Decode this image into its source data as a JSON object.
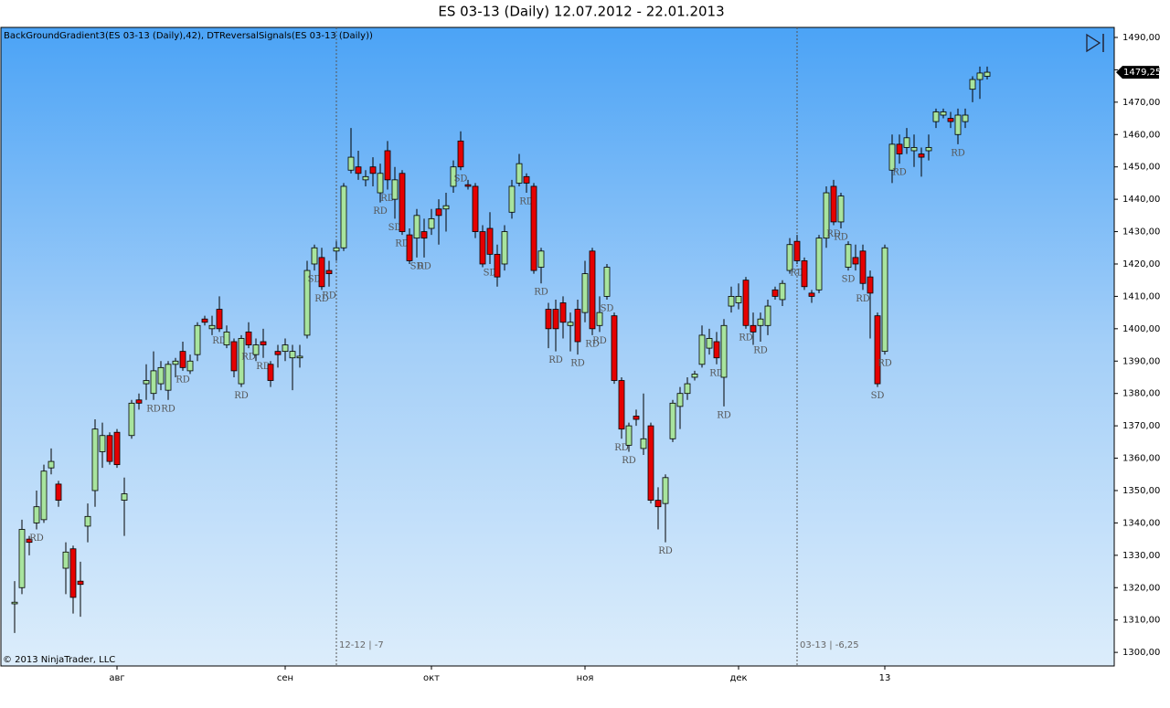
{
  "chart_data": {
    "type": "candlestick",
    "title": "ES 03-13 (Daily)  12.07.2012 - 22.01.2013",
    "indicator_label": "BackGroundGradient3(ES 03-13 (Daily),42), DTReversalSignals(ES 03-13 (Daily))",
    "copyright": "© 2013 NinjaTrader, LLC",
    "up_color": "#a8e49e",
    "down_color": "#e50000",
    "categories": [
      null,
      null,
      null,
      null,
      null,
      null,
      null,
      null,
      null,
      null,
      null,
      null,
      null,
      null,
      "авг",
      null,
      null,
      null,
      null,
      null,
      null,
      null,
      null,
      null,
      null,
      null,
      null,
      null,
      null,
      null,
      null,
      null,
      null,
      null,
      null,
      null,
      null,
      "сен",
      null,
      null,
      null,
      null,
      null,
      null,
      null,
      null,
      null,
      null,
      null,
      null,
      null,
      null,
      null,
      null,
      null,
      null,
      null,
      "окт",
      null,
      null,
      null,
      null,
      null,
      null,
      null,
      null,
      null,
      null,
      null,
      null,
      null,
      null,
      null,
      null,
      null,
      null,
      null,
      null,
      "ноя",
      null,
      null,
      null,
      null,
      null,
      null,
      null,
      null,
      null,
      null,
      null,
      null,
      null,
      null,
      null,
      null,
      null,
      null,
      null,
      null,
      "дек",
      null,
      null,
      null,
      null,
      null,
      null,
      null,
      null,
      null,
      null,
      null,
      null,
      null,
      null,
      null,
      null,
      null,
      null,
      null,
      "13",
      null,
      null,
      null,
      null,
      null,
      null,
      null,
      null,
      null,
      null,
      null,
      null,
      null,
      null
    ],
    "open": [
      1315,
      1320,
      1335,
      1340,
      1341,
      1357,
      1352,
      1326,
      1332,
      1322,
      1339,
      1350,
      1362,
      1367,
      1368,
      1347,
      1367,
      1378,
      1383,
      1380,
      1383,
      1381,
      1389,
      1393,
      1387,
      1392,
      1403,
      1400,
      1406,
      1395,
      1396,
      1383,
      1399,
      1392,
      1396,
      1389,
      1393,
      1393,
      1391,
      1391,
      1398,
      1420,
      1422,
      1418,
      1424,
      1425,
      1449,
      1450,
      1446,
      1450,
      1442,
      1455,
      1440,
      1448,
      1429,
      1428,
      1430,
      1431,
      1437,
      1437,
      1444,
      1458,
      1444.5,
      1444,
      1430,
      1431,
      1423,
      1420,
      1436,
      1445,
      1447,
      1444,
      1419,
      1406,
      1406,
      1408,
      1401,
      1406,
      1405,
      1424,
      1401,
      1410,
      1404,
      1384,
      1364,
      1373,
      1363,
      1370,
      1347,
      1346,
      1366,
      1376,
      1380,
      1385,
      1389,
      1394,
      1396,
      1385,
      1407,
      1408,
      1415,
      1401,
      1401,
      1401,
      1412,
      1409,
      1418,
      1427,
      1421,
      1411,
      1412,
      1428,
      1444,
      1433,
      1419,
      1422,
      1424,
      1416,
      1404,
      1393,
      1449,
      1457,
      1456,
      1455,
      1454,
      1455,
      1464,
      1466,
      1465,
      1460,
      1464,
      1474,
      1477,
      1478
    ],
    "high": [
      1322,
      1341,
      1336,
      1350,
      1358,
      1363,
      1353,
      1334,
      1333,
      1328,
      1346,
      1372,
      1371,
      1368,
      1369,
      1354,
      1378,
      1380,
      1389,
      1393,
      1390,
      1390,
      1391,
      1396,
      1392,
      1402,
      1404,
      1404,
      1410,
      1401,
      1397,
      1398,
      1402,
      1397,
      1400,
      1390,
      1395,
      1397,
      1395,
      1395,
      1421,
      1426,
      1425,
      1421,
      1427,
      1445,
      1462,
      1455,
      1449,
      1453,
      1451,
      1458,
      1450,
      1449,
      1431,
      1437,
      1434,
      1437,
      1440,
      1442,
      1452,
      1461,
      1446,
      1445,
      1432,
      1436,
      1426,
      1432,
      1446,
      1454,
      1448,
      1445,
      1425,
      1408,
      1409,
      1410,
      1405,
      1409,
      1421,
      1425,
      1410,
      1420,
      1405,
      1385,
      1371,
      1375,
      1380,
      1371,
      1351,
      1355,
      1378,
      1382,
      1385,
      1387,
      1401,
      1400,
      1399,
      1403,
      1413,
      1414,
      1416,
      1405,
      1405,
      1409,
      1413,
      1415,
      1428,
      1429,
      1422,
      1412,
      1429,
      1444,
      1446,
      1442,
      1427,
      1426,
      1426,
      1418,
      1405,
      1426,
      1460,
      1460,
      1462,
      1460,
      1456,
      1460,
      1468,
      1468,
      1467,
      1468,
      1468,
      1478,
      1481,
      1481
    ],
    "low": [
      1306,
      1318,
      1330,
      1338,
      1340,
      1355,
      1345,
      1318,
      1312,
      1311,
      1334,
      1345,
      1357,
      1358,
      1357,
      1336,
      1366,
      1375,
      1378,
      1378,
      1381,
      1378,
      1385,
      1387,
      1386,
      1390,
      1401,
      1398,
      1399,
      1394,
      1385,
      1382,
      1394,
      1390,
      1391,
      1382,
      1388,
      1390,
      1381,
      1388,
      1397,
      1418,
      1412,
      1413,
      1421,
      1424,
      1448,
      1446,
      1444,
      1444,
      1439,
      1443,
      1434,
      1429,
      1420,
      1422,
      1422,
      1429,
      1426,
      1430,
      1442,
      1449,
      1443,
      1428,
      1419,
      1420,
      1413,
      1418,
      1434,
      1444,
      1442,
      1417,
      1414,
      1394,
      1393,
      1397,
      1393,
      1392,
      1402,
      1398,
      1399,
      1409,
      1383,
      1366,
      1362,
      1370,
      1361,
      1346,
      1338,
      1334,
      1365,
      1369,
      1378,
      1384,
      1388,
      1392,
      1389,
      1376,
      1405,
      1406,
      1400,
      1395,
      1396,
      1398,
      1409,
      1407,
      1417,
      1420,
      1412,
      1408,
      1411,
      1425,
      1432,
      1431,
      1418,
      1418,
      1412,
      1397,
      1382,
      1392,
      1445,
      1451,
      1454,
      1450,
      1447,
      1452,
      1462,
      1465,
      1462,
      1457,
      1462,
      1470,
      1471,
      1477
    ],
    "close": [
      1315.5,
      1338,
      1334,
      1345,
      1356,
      1359,
      1347,
      1331,
      1317,
      1321,
      1342,
      1369,
      1367,
      1359,
      1358,
      1349,
      1377,
      1377,
      1384,
      1387,
      1388,
      1389,
      1390,
      1388,
      1390,
      1401,
      1402,
      1401,
      1400,
      1399,
      1387,
      1397,
      1395,
      1395,
      1395,
      1384,
      1392,
      1395,
      1393,
      1391.5,
      1418,
      1425,
      1413,
      1417,
      1425,
      1444,
      1453,
      1448,
      1447,
      1448,
      1448,
      1446,
      1446,
      1430,
      1421,
      1435,
      1428,
      1434,
      1435,
      1438,
      1450,
      1450,
      1444,
      1430,
      1420,
      1423,
      1416,
      1430,
      1444,
      1451,
      1445,
      1418,
      1424,
      1400,
      1400,
      1402,
      1402,
      1396,
      1417,
      1400,
      1405,
      1419,
      1384,
      1369,
      1370,
      1372,
      1366,
      1347,
      1345,
      1354,
      1377,
      1380,
      1383,
      1386,
      1398,
      1397,
      1391,
      1401,
      1410,
      1410,
      1401,
      1399,
      1403,
      1407,
      1410,
      1414,
      1426,
      1421,
      1413,
      1410,
      1428,
      1442,
      1433,
      1441,
      1426,
      1420,
      1414,
      1411,
      1383,
      1425,
      1457,
      1454,
      1459,
      1456,
      1453,
      1456,
      1467,
      1467,
      1464,
      1466,
      1466,
      1477,
      1479,
      1479.25
    ],
    "signals": [
      null,
      null,
      null,
      "RD",
      null,
      null,
      null,
      null,
      null,
      null,
      null,
      null,
      null,
      null,
      null,
      null,
      null,
      null,
      null,
      "RD",
      null,
      "RD",
      null,
      "RD",
      null,
      null,
      null,
      null,
      "RD",
      null,
      null,
      "RD",
      "RD",
      null,
      "RD",
      null,
      null,
      null,
      null,
      null,
      null,
      "SD",
      "RD",
      "RD",
      null,
      null,
      null,
      null,
      null,
      null,
      "RD",
      "RD",
      "SD",
      "RD",
      null,
      "SD",
      "RD",
      null,
      null,
      null,
      null,
      "SD",
      null,
      null,
      null,
      "SD",
      null,
      null,
      null,
      null,
      "RD",
      null,
      "RD",
      null,
      "RD",
      null,
      null,
      "RD",
      null,
      "RD",
      "RD",
      "SD",
      null,
      "RD",
      "RD",
      null,
      null,
      null,
      null,
      "RD",
      null,
      null,
      null,
      null,
      null,
      null,
      "RD",
      "RD",
      null,
      null,
      "RD",
      null,
      "RD",
      null,
      null,
      null,
      null,
      "RD",
      null,
      null,
      null,
      null,
      "RD",
      "RD",
      "SD",
      null,
      "RD",
      null,
      "SD",
      "RD",
      null,
      "RD",
      null,
      null,
      null,
      null,
      null,
      null,
      null,
      "RD",
      null,
      null,
      null,
      null
    ],
    "rollovers": [
      null,
      null,
      null,
      null,
      null,
      null,
      null,
      null,
      null,
      null,
      null,
      null,
      null,
      null,
      null,
      null,
      null,
      null,
      null,
      null,
      null,
      null,
      null,
      null,
      null,
      null,
      null,
      null,
      null,
      null,
      null,
      null,
      null,
      null,
      null,
      null,
      null,
      null,
      null,
      null,
      null,
      null,
      null,
      null,
      "12-12 | -7",
      null,
      null,
      null,
      null,
      null,
      null,
      null,
      null,
      null,
      null,
      null,
      null,
      null,
      null,
      null,
      null,
      null,
      null,
      null,
      null,
      null,
      null,
      null,
      null,
      null,
      null,
      null,
      null,
      null,
      null,
      null,
      null,
      null,
      null,
      null,
      null,
      null,
      null,
      null,
      null,
      null,
      null,
      null,
      null,
      null,
      null,
      null,
      null,
      null,
      null,
      null,
      null,
      null,
      null,
      null,
      null,
      null,
      null,
      null,
      null,
      null,
      null,
      "03-13 | -6,25",
      null,
      null,
      null,
      null,
      null,
      null,
      null,
      null,
      null,
      null,
      null,
      null,
      null,
      null,
      null,
      null,
      null,
      null,
      null,
      null,
      null,
      null,
      null,
      null,
      null,
      null
    ],
    "last_price": {
      "value": 1479.25,
      "label": "1479,25"
    },
    "ylim": [
      1295.8,
      1493.1
    ],
    "yticks": [
      {
        "value": 1300,
        "label": "1300,00"
      },
      {
        "value": 1310,
        "label": "1310,00"
      },
      {
        "value": 1320,
        "label": "1320,00"
      },
      {
        "value": 1330,
        "label": "1330,00"
      },
      {
        "value": 1340,
        "label": "1340,00"
      },
      {
        "value": 1350,
        "label": "1350,00"
      },
      {
        "value": 1360,
        "label": "1360,00"
      },
      {
        "value": 1370,
        "label": "1370,00"
      },
      {
        "value": 1380,
        "label": "1380,00"
      },
      {
        "value": 1390,
        "label": "1390,00"
      },
      {
        "value": 1400,
        "label": "1400,00"
      },
      {
        "value": 1410,
        "label": "1410,00"
      },
      {
        "value": 1420,
        "label": "1420,00"
      },
      {
        "value": 1430,
        "label": "1430,00"
      },
      {
        "value": 1440,
        "label": "1440,00"
      },
      {
        "value": 1450,
        "label": "1450,00"
      },
      {
        "value": 1460,
        "label": "1460,00"
      },
      {
        "value": 1470,
        "label": "1470,00"
      },
      {
        "value": 1480,
        "label": "1480,00"
      },
      {
        "value": 1490,
        "label": "1490,00"
      }
    ],
    "grid": false
  }
}
